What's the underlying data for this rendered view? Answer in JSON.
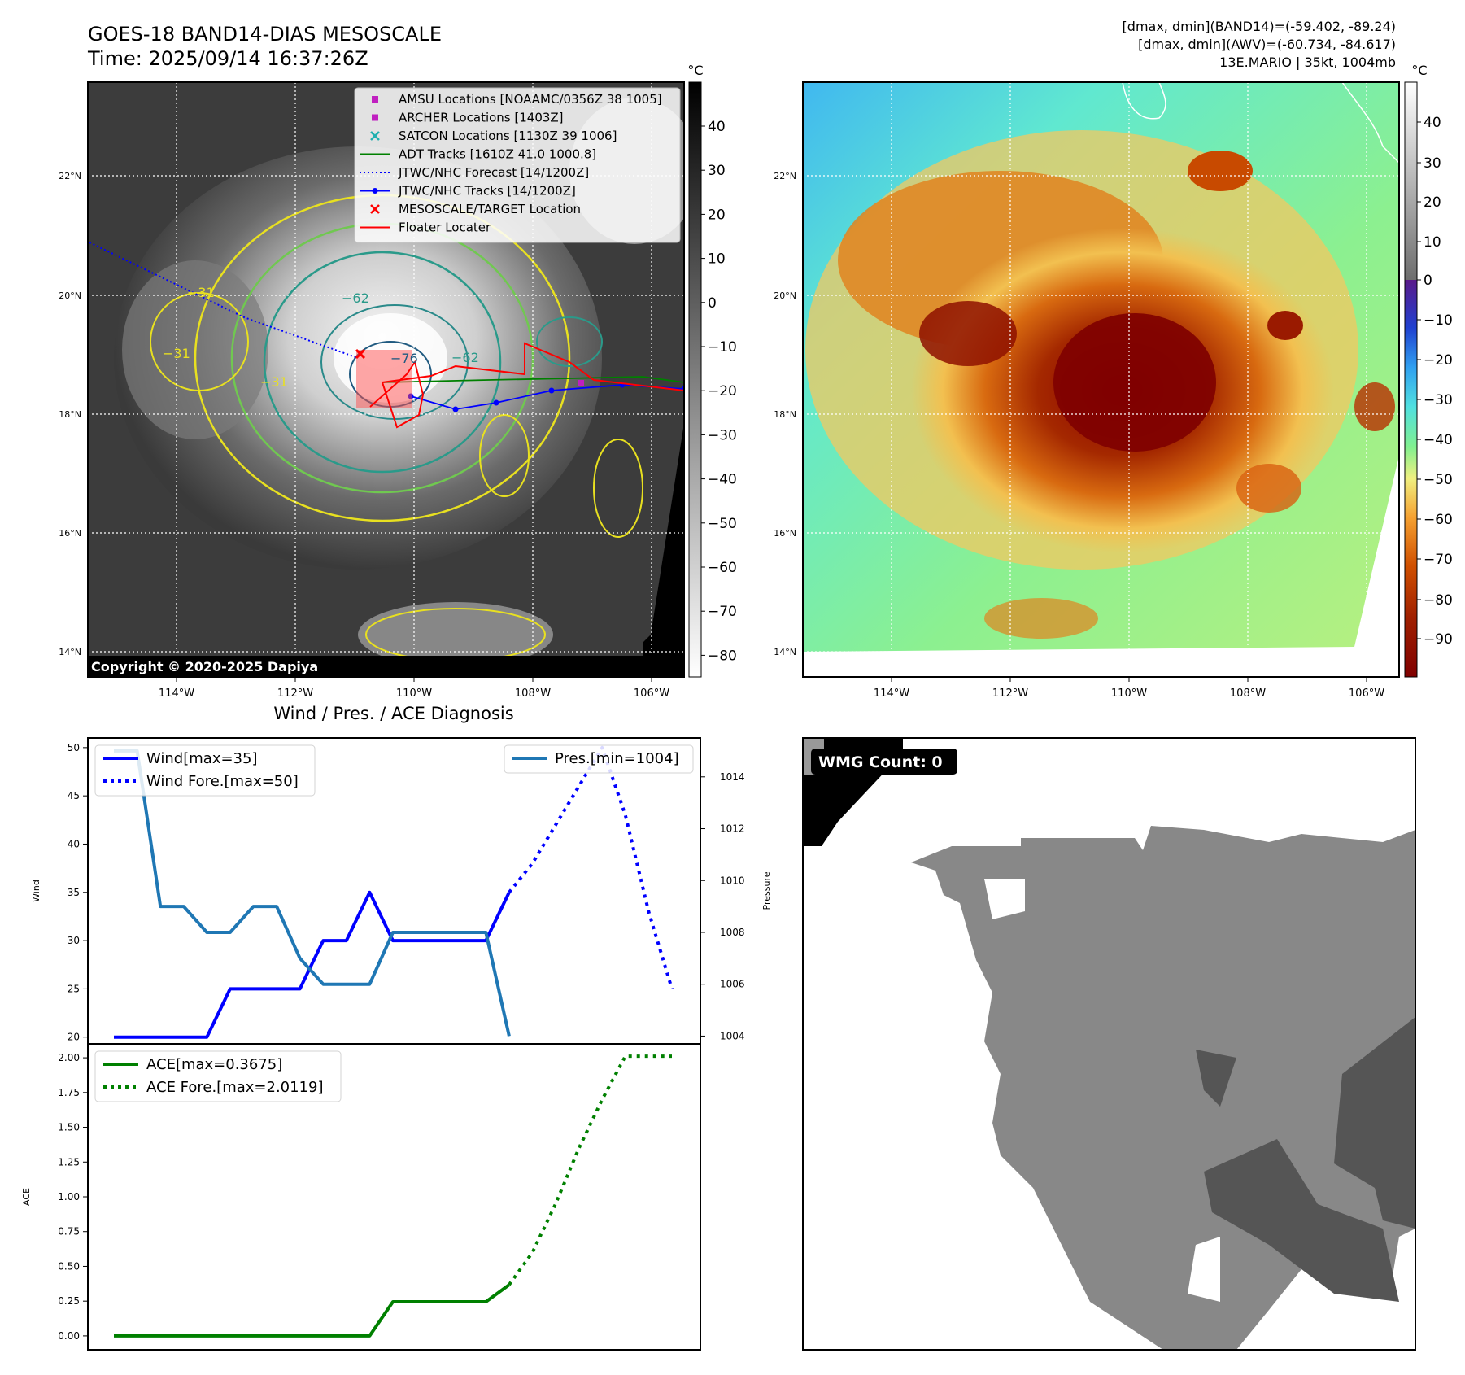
{
  "header": {
    "title_line1": "GOES-18 BAND14-DIAS MESOSCALE",
    "title_line2": "Time: 2025/09/14 16:37:26Z",
    "info_line1": "[dmax, dmin](BAND14)=(-59.402, -89.24)",
    "info_line2": "[dmax, dmin](AWV)=(-60.734, -84.617)",
    "info_line3": "13E.MARIO | 35kt, 1004mb"
  },
  "colorbar_unit": "°C",
  "copyright": "Copyright © 2020-2025 Dapiya",
  "map": {
    "lon_labels": [
      "114°W",
      "112°W",
      "110°W",
      "108°W",
      "106°W"
    ],
    "lat_labels": [
      "22°N",
      "20°N",
      "18°N",
      "16°N",
      "14°N"
    ],
    "ir_colorbar_ticks": [
      "40",
      "30",
      "20",
      "10",
      "0",
      "−10",
      "−20",
      "−30",
      "−40",
      "−50",
      "−60",
      "−70",
      "−80"
    ],
    "color_colorbar_ticks": [
      "40",
      "30",
      "20",
      "10",
      "0",
      "−10",
      "−20",
      "−30",
      "−40",
      "−50",
      "−60",
      "−70",
      "−80",
      "−90"
    ],
    "contour_labels": [
      "−76",
      "−31",
      "−31",
      "−31",
      "−62",
      "−62"
    ],
    "legend": [
      {
        "label": "AMSU Locations [NOAAMC/0356Z 38 1005]",
        "marker": "square",
        "color": "#c020c0"
      },
      {
        "label": "ARCHER Locations [1403Z]",
        "marker": "square",
        "color": "#c020c0"
      },
      {
        "label": "SATCON Locations [1130Z 39 1006]",
        "marker": "x",
        "color": "#20b0b0"
      },
      {
        "label": "ADT Tracks [1610Z 41.0 1000.8]",
        "marker": "line",
        "color": "#008000"
      },
      {
        "label": "JTWC/NHC Forecast [14/1200Z]",
        "marker": "dotted",
        "color": "#0000ff"
      },
      {
        "label": "JTWC/NHC Tracks [14/1200Z]",
        "marker": "line-dot",
        "color": "#0000ff"
      },
      {
        "label": "MESOSCALE/TARGET Location",
        "marker": "x",
        "color": "#ff0000"
      },
      {
        "label": "Floater Locater",
        "marker": "line",
        "color": "#ff0000"
      }
    ]
  },
  "wmg": {
    "label": "WMG Count: 0"
  },
  "chart_data": [
    {
      "type": "line",
      "title": "Wind / Pres. / ACE Diagnosis",
      "ylabel": "Wind",
      "ylabel_right": "Pressure",
      "ylim": [
        19.3,
        51.0
      ],
      "ylim_right": [
        1003.7,
        1015.5
      ],
      "yticks": [
        20,
        25,
        30,
        35,
        40,
        45,
        50
      ],
      "yticks_right": [
        1004,
        1006,
        1008,
        1010,
        1012,
        1014
      ],
      "x": [
        0,
        1,
        2,
        3,
        4,
        5,
        6,
        7,
        8,
        9,
        10,
        11,
        12,
        13,
        14,
        15,
        16,
        17,
        18,
        19,
        20,
        21,
        22,
        23,
        24
      ],
      "series": [
        {
          "name": "Wind[max=35]",
          "axis": "left",
          "style": "solid",
          "color": "#0000ff",
          "values": [
            20,
            20,
            20,
            20,
            20,
            25,
            25,
            25,
            25,
            30,
            30,
            35,
            30,
            30,
            30,
            30,
            30,
            35,
            null,
            null,
            null,
            null,
            null,
            null,
            null
          ]
        },
        {
          "name": "Wind Fore.[max=50]",
          "axis": "left",
          "style": "dotted",
          "color": "#0000ff",
          "values": [
            null,
            null,
            null,
            null,
            null,
            null,
            null,
            null,
            null,
            null,
            null,
            null,
            null,
            null,
            null,
            null,
            null,
            35,
            38,
            42,
            46,
            50,
            43,
            33,
            25
          ]
        },
        {
          "name": "Pres.[min=1004]",
          "axis": "right",
          "style": "solid",
          "color": "#1f77b4",
          "values": [
            1015,
            1015,
            1009,
            1009,
            1008,
            1008,
            1009,
            1009,
            1007,
            1006,
            1006,
            1006,
            1008,
            1008,
            1008,
            1008,
            1008,
            1004,
            null,
            null,
            null,
            null,
            null,
            null,
            null
          ]
        }
      ]
    },
    {
      "type": "line",
      "ylabel": "ACE",
      "ylim": [
        -0.1,
        2.1
      ],
      "yticks": [
        "0.00",
        "0.25",
        "0.50",
        "0.75",
        "1.00",
        "1.25",
        "1.50",
        "1.75",
        "2.00"
      ],
      "x": [
        0,
        1,
        2,
        3,
        4,
        5,
        6,
        7,
        8,
        9,
        10,
        11,
        12,
        13,
        14,
        15,
        16,
        17,
        18,
        19,
        20,
        21,
        22,
        23,
        24
      ],
      "series": [
        {
          "name": "ACE[max=0.3675]",
          "style": "solid",
          "color": "#008000",
          "values": [
            0,
            0,
            0,
            0,
            0,
            0,
            0,
            0,
            0,
            0,
            0,
            0.0,
            0.245,
            0.245,
            0.245,
            0.245,
            0.245,
            0.3675,
            null,
            null,
            null,
            null,
            null,
            null,
            null
          ]
        },
        {
          "name": "ACE Fore.[max=2.0119]",
          "style": "dotted",
          "color": "#008000",
          "values": [
            null,
            null,
            null,
            null,
            null,
            null,
            null,
            null,
            null,
            null,
            null,
            null,
            null,
            null,
            null,
            null,
            null,
            0.3675,
            0.6,
            0.95,
            1.35,
            1.7,
            2.0119,
            2.0119,
            2.0119
          ]
        }
      ]
    }
  ]
}
